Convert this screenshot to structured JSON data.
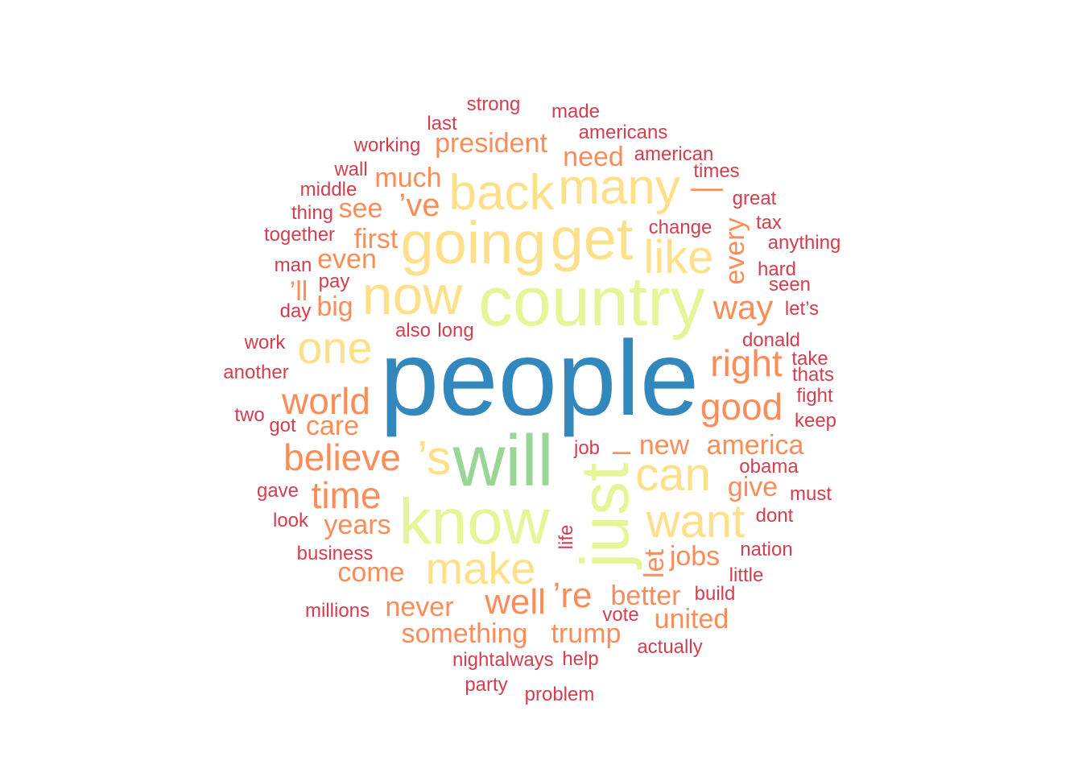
{
  "palette": {
    "t1": "#3288bd",
    "t2": "#99d594",
    "t3": "#e6f598",
    "t4": "#fee08b",
    "t5": "#fc8d59",
    "t6": "#d53e4f"
  },
  "words": [
    {
      "text": "people",
      "tier": "t1"
    },
    {
      "text": "will",
      "tier": "t2"
    },
    {
      "text": "country",
      "tier": "t3"
    },
    {
      "text": "know",
      "tier": "t3"
    },
    {
      "text": "just",
      "tier": "t3"
    },
    {
      "text": "going",
      "tier": "t4"
    },
    {
      "text": "get",
      "tier": "t4"
    },
    {
      "text": "now",
      "tier": "t4"
    },
    {
      "text": "many",
      "tier": "t4"
    },
    {
      "text": "back",
      "tier": "t4"
    },
    {
      "text": "like",
      "tier": "t4"
    },
    {
      "text": "one",
      "tier": "t4"
    },
    {
      "text": "’s",
      "tier": "t4"
    },
    {
      "text": "can",
      "tier": "t4"
    },
    {
      "text": "want",
      "tier": "t4"
    },
    {
      "text": "make",
      "tier": "t4"
    },
    {
      "text": "world",
      "tier": "t5"
    },
    {
      "text": "believe",
      "tier": "t5"
    },
    {
      "text": "time",
      "tier": "t5"
    },
    {
      "text": "right",
      "tier": "t5"
    },
    {
      "text": "good",
      "tier": "t5"
    },
    {
      "text": "way",
      "tier": "t5"
    },
    {
      "text": "well",
      "tier": "t5"
    },
    {
      "text": "’re",
      "tier": "t5"
    },
    {
      "text": "’ve",
      "tier": "t5"
    },
    {
      "text": "president",
      "tier": "t5"
    },
    {
      "text": "much",
      "tier": "t5"
    },
    {
      "text": "need",
      "tier": "t5"
    },
    {
      "text": "see",
      "tier": "t5"
    },
    {
      "text": "first",
      "tier": "t5"
    },
    {
      "text": "even",
      "tier": "t5"
    },
    {
      "text": "’ll",
      "tier": "t5"
    },
    {
      "text": "big",
      "tier": "t5"
    },
    {
      "text": "care",
      "tier": "t5"
    },
    {
      "text": "every",
      "tier": "t5"
    },
    {
      "text": "—",
      "tier": "t5"
    },
    {
      "text": "new",
      "tier": "t5"
    },
    {
      "text": "america",
      "tier": "t5"
    },
    {
      "text": "give",
      "tier": "t5"
    },
    {
      "text": "years",
      "tier": "t5"
    },
    {
      "text": "come",
      "tier": "t5"
    },
    {
      "text": "never",
      "tier": "t5"
    },
    {
      "text": "something",
      "tier": "t5"
    },
    {
      "text": "trump",
      "tier": "t5"
    },
    {
      "text": "better",
      "tier": "t5"
    },
    {
      "text": "united",
      "tier": "t5"
    },
    {
      "text": "jobs",
      "tier": "t5"
    },
    {
      "text": "let",
      "tier": "t5"
    },
    {
      "text": "–",
      "tier": "t5"
    },
    {
      "text": "strong",
      "tier": "t6"
    },
    {
      "text": "made",
      "tier": "t6"
    },
    {
      "text": "last",
      "tier": "t6"
    },
    {
      "text": "americans",
      "tier": "t6"
    },
    {
      "text": "working",
      "tier": "t6"
    },
    {
      "text": "american",
      "tier": "t6"
    },
    {
      "text": "wall",
      "tier": "t6"
    },
    {
      "text": "times",
      "tier": "t6"
    },
    {
      "text": "middle",
      "tier": "t6"
    },
    {
      "text": "great",
      "tier": "t6"
    },
    {
      "text": "thing",
      "tier": "t6"
    },
    {
      "text": "change",
      "tier": "t6"
    },
    {
      "text": "tax",
      "tier": "t6"
    },
    {
      "text": "together",
      "tier": "t6"
    },
    {
      "text": "anything",
      "tier": "t6"
    },
    {
      "text": "man",
      "tier": "t6"
    },
    {
      "text": "hard",
      "tier": "t6"
    },
    {
      "text": "pay",
      "tier": "t6"
    },
    {
      "text": "seen",
      "tier": "t6"
    },
    {
      "text": "day",
      "tier": "t6"
    },
    {
      "text": "let’s",
      "tier": "t6"
    },
    {
      "text": "also",
      "tier": "t6"
    },
    {
      "text": "long",
      "tier": "t6"
    },
    {
      "text": "work",
      "tier": "t6"
    },
    {
      "text": "donald",
      "tier": "t6"
    },
    {
      "text": "another",
      "tier": "t6"
    },
    {
      "text": "take",
      "tier": "t6"
    },
    {
      "text": "thats",
      "tier": "t6"
    },
    {
      "text": "fight",
      "tier": "t6"
    },
    {
      "text": "two",
      "tier": "t6"
    },
    {
      "text": "got",
      "tier": "t6"
    },
    {
      "text": "keep",
      "tier": "t6"
    },
    {
      "text": "job",
      "tier": "t6"
    },
    {
      "text": "obama",
      "tier": "t6"
    },
    {
      "text": "gave",
      "tier": "t6"
    },
    {
      "text": "must",
      "tier": "t6"
    },
    {
      "text": "look",
      "tier": "t6"
    },
    {
      "text": "dont",
      "tier": "t6"
    },
    {
      "text": "life",
      "tier": "t6"
    },
    {
      "text": "nation",
      "tier": "t6"
    },
    {
      "text": "business",
      "tier": "t6"
    },
    {
      "text": "little",
      "tier": "t6"
    },
    {
      "text": "build",
      "tier": "t6"
    },
    {
      "text": "millions",
      "tier": "t6"
    },
    {
      "text": "vote",
      "tier": "t6"
    },
    {
      "text": "actually",
      "tier": "t6"
    },
    {
      "text": "night",
      "tier": "t6"
    },
    {
      "text": "always",
      "tier": "t6"
    },
    {
      "text": "help",
      "tier": "t6"
    },
    {
      "text": "party",
      "tier": "t6"
    },
    {
      "text": "problem",
      "tier": "t6"
    }
  ]
}
